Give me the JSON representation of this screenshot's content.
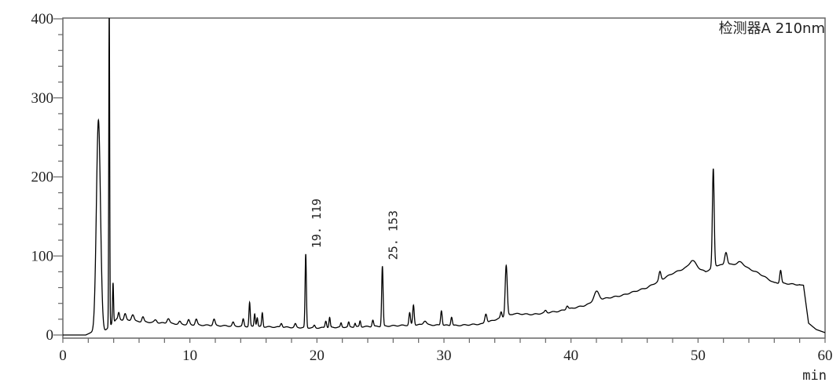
{
  "chart_data": {
    "type": "line",
    "title": "检测器A 210nm",
    "xlabel": "min",
    "ylabel": "",
    "xlim": [
      0,
      60
    ],
    "ylim": [
      0,
      400
    ],
    "x_ticks": [
      0,
      10,
      20,
      30,
      40,
      50,
      60
    ],
    "x_tick_labels": [
      "0",
      "10",
      "20",
      "30",
      "40",
      "50",
      "60"
    ],
    "y_ticks": [
      0,
      100,
      200,
      300,
      400
    ],
    "y_tick_labels": [
      "0",
      "100",
      "200",
      "300",
      "400"
    ],
    "x_minor_step": 2,
    "y_minor_step": 20,
    "grid": false,
    "line_color": "#000000",
    "baseline": [
      [
        0,
        0
      ],
      [
        1.8,
        0
      ],
      [
        2.2,
        3
      ],
      [
        3.3,
        5
      ],
      [
        4.2,
        20
      ],
      [
        6,
        17
      ],
      [
        8,
        15
      ],
      [
        10,
        13
      ],
      [
        12,
        12
      ],
      [
        14,
        11
      ],
      [
        17,
        10
      ],
      [
        20,
        9
      ],
      [
        22,
        10
      ],
      [
        25,
        11
      ],
      [
        28,
        13
      ],
      [
        31,
        12
      ],
      [
        33,
        14
      ],
      [
        35.5,
        27
      ],
      [
        37,
        26
      ],
      [
        39,
        30
      ],
      [
        41,
        37
      ],
      [
        42.6,
        46
      ],
      [
        44,
        50
      ],
      [
        46,
        60
      ],
      [
        48,
        78
      ],
      [
        49.5,
        88
      ],
      [
        50.6,
        80
      ],
      [
        51.4,
        88
      ],
      [
        53.2,
        90
      ],
      [
        54.8,
        78
      ],
      [
        56,
        66
      ],
      [
        57,
        65
      ],
      [
        58.3,
        63
      ],
      [
        58.7,
        15
      ],
      [
        59.3,
        7
      ],
      [
        60,
        3
      ]
    ],
    "peaks": [
      {
        "t": 2.8,
        "h": 272,
        "w": 0.16
      },
      {
        "t": 3.65,
        "h": 420,
        "w": 0.035
      },
      {
        "t": 3.95,
        "h": 66,
        "w": 0.04
      },
      {
        "t": 4.4,
        "h": 28,
        "w": 0.06
      },
      {
        "t": 4.9,
        "h": 27,
        "w": 0.08
      },
      {
        "t": 5.5,
        "h": 26,
        "w": 0.1
      },
      {
        "t": 6.3,
        "h": 23,
        "w": 0.08
      },
      {
        "t": 7.3,
        "h": 19,
        "w": 0.1
      },
      {
        "t": 8.3,
        "h": 21,
        "w": 0.1
      },
      {
        "t": 9.2,
        "h": 17,
        "w": 0.08
      },
      {
        "t": 9.9,
        "h": 19,
        "w": 0.08
      },
      {
        "t": 10.5,
        "h": 20,
        "w": 0.08
      },
      {
        "t": 11.9,
        "h": 20,
        "w": 0.08
      },
      {
        "t": 13.4,
        "h": 16,
        "w": 0.07
      },
      {
        "t": 14.2,
        "h": 20,
        "w": 0.06
      },
      {
        "t": 14.7,
        "h": 41,
        "w": 0.05
      },
      {
        "t": 15.1,
        "h": 27,
        "w": 0.05
      },
      {
        "t": 15.3,
        "h": 22,
        "w": 0.05
      },
      {
        "t": 15.7,
        "h": 28,
        "w": 0.05
      },
      {
        "t": 17.2,
        "h": 15,
        "w": 0.07
      },
      {
        "t": 18.3,
        "h": 14,
        "w": 0.07
      },
      {
        "t": 19.119,
        "h": 102,
        "w": 0.05,
        "label": "19. 119"
      },
      {
        "t": 19.8,
        "h": 12,
        "w": 0.06
      },
      {
        "t": 20.7,
        "h": 18,
        "w": 0.06
      },
      {
        "t": 21.0,
        "h": 22,
        "w": 0.05
      },
      {
        "t": 21.9,
        "h": 15,
        "w": 0.05
      },
      {
        "t": 22.5,
        "h": 16,
        "w": 0.05
      },
      {
        "t": 23.0,
        "h": 15,
        "w": 0.05
      },
      {
        "t": 23.4,
        "h": 18,
        "w": 0.05
      },
      {
        "t": 24.4,
        "h": 19,
        "w": 0.06
      },
      {
        "t": 25.153,
        "h": 87,
        "w": 0.055,
        "label": "25. 153"
      },
      {
        "t": 27.3,
        "h": 28,
        "w": 0.06
      },
      {
        "t": 27.6,
        "h": 38,
        "w": 0.06
      },
      {
        "t": 28.5,
        "h": 18,
        "w": 0.12
      },
      {
        "t": 29.8,
        "h": 31,
        "w": 0.06
      },
      {
        "t": 30.6,
        "h": 23,
        "w": 0.06
      },
      {
        "t": 33.3,
        "h": 27,
        "w": 0.08
      },
      {
        "t": 34.5,
        "h": 29,
        "w": 0.06
      },
      {
        "t": 34.9,
        "h": 88,
        "w": 0.08
      },
      {
        "t": 38,
        "h": 31,
        "w": 0.08
      },
      {
        "t": 39.7,
        "h": 37,
        "w": 0.08
      },
      {
        "t": 42,
        "h": 55,
        "w": 0.2
      },
      {
        "t": 47,
        "h": 80,
        "w": 0.08
      },
      {
        "t": 49.6,
        "h": 94,
        "w": 0.25
      },
      {
        "t": 51.2,
        "h": 210,
        "w": 0.07
      },
      {
        "t": 52.2,
        "h": 105,
        "w": 0.1
      },
      {
        "t": 53.4,
        "h": 92,
        "w": 0.2
      },
      {
        "t": 56.5,
        "h": 82,
        "w": 0.07
      }
    ]
  }
}
